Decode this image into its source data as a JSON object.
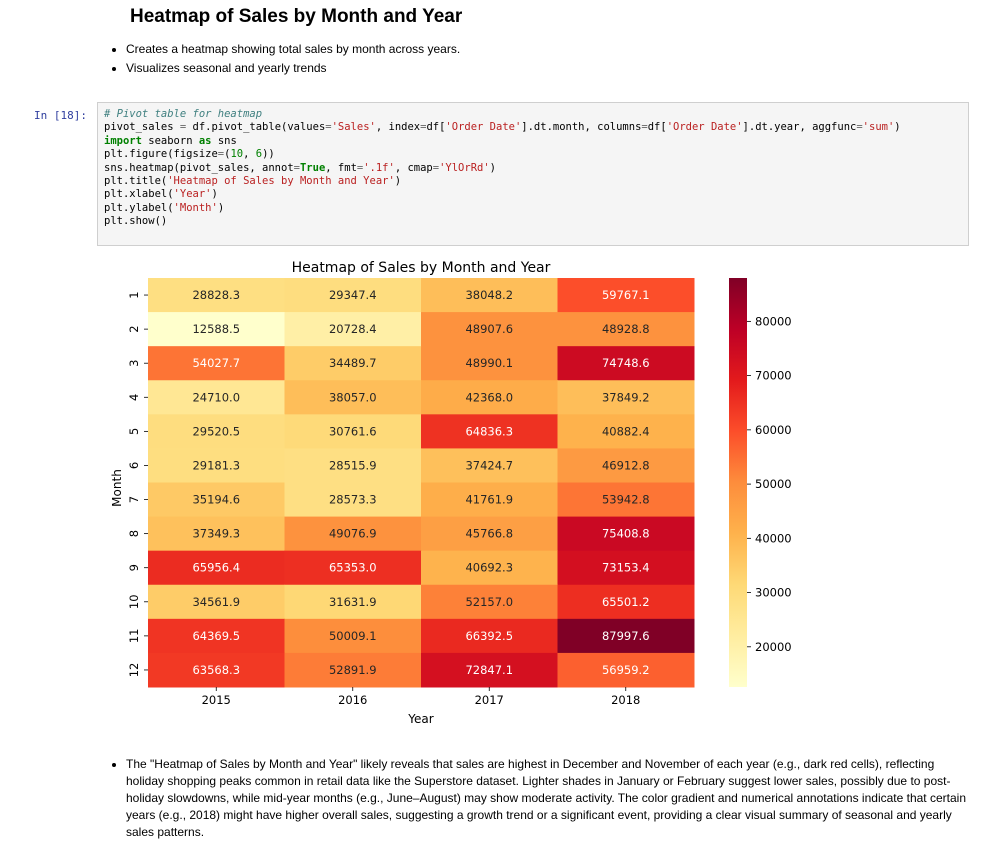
{
  "heading": "Heatmap of Sales by Month and Year",
  "intro_bullets": [
    "Creates a heatmap showing total sales by month across years.",
    "Visualizes seasonal and yearly trends"
  ],
  "cell": {
    "prompt": "In [18]:",
    "code_lines": [
      "# Pivot table for heatmap",
      "pivot_sales = df.pivot_table(values='Sales', index=df['Order Date'].dt.month, columns=df['Order Date'].dt.year, aggfunc='sum')",
      "import seaborn as sns",
      "plt.figure(figsize=(10, 6))",
      "sns.heatmap(pivot_sales, annot=True, fmt='.1f', cmap='YlOrRd')",
      "plt.title('Heatmap of Sales by Month and Year')",
      "plt.xlabel('Year')",
      "plt.ylabel('Month')",
      "plt.show()"
    ]
  },
  "chart_data": {
    "type": "heatmap",
    "title": "Heatmap of Sales by Month and Year",
    "xlabel": "Year",
    "ylabel": "Month",
    "x": [
      "2015",
      "2016",
      "2017",
      "2018"
    ],
    "y": [
      "1",
      "2",
      "3",
      "4",
      "5",
      "6",
      "7",
      "8",
      "9",
      "10",
      "11",
      "12"
    ],
    "values": [
      [
        28828.3,
        29347.4,
        38048.2,
        59767.1
      ],
      [
        12588.5,
        20728.4,
        48907.6,
        48928.8
      ],
      [
        54027.7,
        34489.7,
        48990.1,
        74748.6
      ],
      [
        24710.0,
        38057.0,
        42368.0,
        37849.2
      ],
      [
        29520.5,
        30761.6,
        64836.3,
        40882.4
      ],
      [
        29181.3,
        28515.9,
        37424.7,
        46912.8
      ],
      [
        35194.6,
        28573.3,
        41761.9,
        53942.8
      ],
      [
        37349.3,
        49076.9,
        45766.8,
        75408.8
      ],
      [
        65956.4,
        65353.0,
        40692.3,
        73153.4
      ],
      [
        34561.9,
        31631.9,
        52157.0,
        65501.2
      ],
      [
        64369.5,
        50009.1,
        66392.5,
        87997.6
      ],
      [
        63568.3,
        52891.9,
        72847.1,
        56959.2
      ]
    ],
    "colormap": "YlOrRd",
    "colorbar_ticks": [
      "80000",
      "70000",
      "60000",
      "50000",
      "40000",
      "30000",
      "20000"
    ],
    "colorbar_range": [
      12588.5,
      87997.6
    ]
  },
  "summary_bullets": [
    "The \"Heatmap of Sales by Month and Year\" likely reveals that sales are highest in December and November of each year (e.g., dark red cells), reflecting holiday shopping peaks common in retail data like the Superstore dataset. Lighter shades in January or February suggest lower sales, possibly due to post-holiday slowdowns, while mid-year months (e.g., June–August) may show moderate activity. The color gradient and numerical annotations indicate that certain years (e.g., 2018) might have higher overall sales, suggesting a growth trend or a significant event, providing a clear visual summary of seasonal and yearly sales patterns."
  ]
}
